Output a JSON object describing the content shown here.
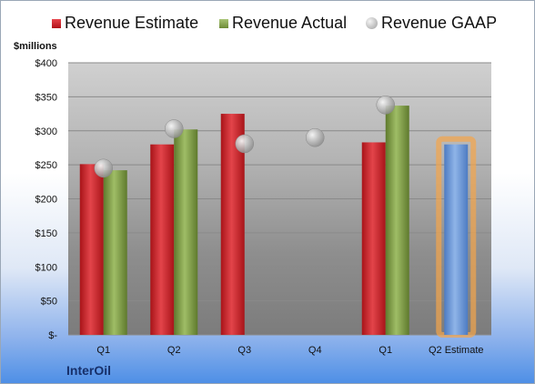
{
  "legend": {
    "estimate": "Revenue Estimate",
    "actual": "Revenue Actual",
    "gaap": "Revenue GAAP"
  },
  "unit_label": "$millions",
  "company": "InterOil",
  "colors": {
    "estimate": "#c8262c",
    "actual": "#7f9f45",
    "gaap": "#b8b8b8",
    "forecast": "#6f9ad6",
    "forecast_glow": "#f5a54a"
  },
  "chart_data": {
    "type": "bar",
    "categories": [
      "Q1",
      "Q2",
      "Q3",
      "Q4",
      "Q1",
      "Q2 Estimate"
    ],
    "y_tick_labels": [
      "$-",
      "$50",
      "$100",
      "$150",
      "$200",
      "$250",
      "$300",
      "$350",
      "$400"
    ],
    "ylabel": "$millions",
    "ylim": [
      0,
      400
    ],
    "grid": true,
    "legend_position": "top",
    "series": [
      {
        "name": "Revenue Estimate",
        "type": "bar",
        "values": [
          251,
          280,
          325,
          null,
          283,
          280
        ]
      },
      {
        "name": "Revenue Actual",
        "type": "bar",
        "values": [
          242,
          302,
          null,
          null,
          337,
          null
        ]
      },
      {
        "name": "Revenue GAAP",
        "type": "scatter",
        "values": [
          245,
          303,
          281,
          290,
          338,
          null
        ]
      }
    ]
  }
}
